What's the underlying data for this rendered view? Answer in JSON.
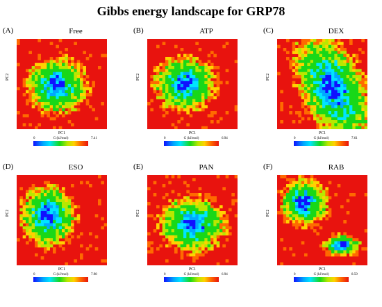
{
  "title": "Gibbs energy landscape for GRP78",
  "colors": {
    "background": "#e8130e",
    "scale": [
      "#1010ff",
      "#00a8ff",
      "#00e5ff",
      "#18d818",
      "#b8e800",
      "#ffd200",
      "#ff6a00",
      "#e8130e"
    ]
  },
  "chart_data": [
    {
      "type": "heatmap",
      "label": "(A)",
      "title": "Free",
      "xlabel": "PC1",
      "ylabel": "PC2",
      "colorbar_label": "G (kJ/mol)",
      "colorbar_min": "0",
      "colorbar_max": "7.41",
      "vmax": 7.41,
      "grid": [
        30,
        30
      ],
      "cx": 0.45,
      "cy": 0.52,
      "sx": 0.22,
      "sy": 0.2
    },
    {
      "type": "heatmap",
      "label": "(B)",
      "title": "ATP",
      "xlabel": "PC1",
      "ylabel": "PC2",
      "colorbar_label": "G (kJ/mol)",
      "colorbar_min": "0",
      "colorbar_max": "6.94",
      "vmax": 6.94,
      "grid": [
        30,
        30
      ],
      "cx": 0.42,
      "cy": 0.5,
      "sx": 0.22,
      "sy": 0.2
    },
    {
      "type": "heatmap",
      "label": "(C)",
      "title": "DEX",
      "xlabel": "PC1",
      "ylabel": "PC2",
      "colorbar_label": "G (kJ/mol)",
      "colorbar_min": "0",
      "colorbar_max": "7.61",
      "vmax": 7.61,
      "grid": [
        30,
        30
      ],
      "cx": 0.62,
      "cy": 0.55,
      "sx": 0.2,
      "sy": 0.28
    },
    {
      "type": "heatmap",
      "label": "(D)",
      "title": "ESO",
      "xlabel": "PC1",
      "ylabel": "PC2",
      "colorbar_label": "G (kJ/mol)",
      "colorbar_min": "0",
      "colorbar_max": "7.98",
      "vmax": 7.98,
      "grid": [
        30,
        30
      ],
      "cx": 0.35,
      "cy": 0.45,
      "sx": 0.2,
      "sy": 0.22
    },
    {
      "type": "heatmap",
      "label": "(E)",
      "title": "PAN",
      "xlabel": "PC1",
      "ylabel": "PC2",
      "colorbar_label": "G (kJ/mol)",
      "colorbar_min": "0",
      "colorbar_max": "6.94",
      "vmax": 6.94,
      "grid": [
        30,
        30
      ],
      "cx": 0.5,
      "cy": 0.55,
      "sx": 0.24,
      "sy": 0.2
    },
    {
      "type": "heatmap",
      "label": "(F)",
      "title": "RAB",
      "xlabel": "PC1",
      "ylabel": "PC2",
      "colorbar_label": "G (kJ/mol)",
      "colorbar_min": "0",
      "colorbar_max": "8.59",
      "vmax": 8.59,
      "grid": [
        30,
        30
      ],
      "cx": 0.3,
      "cy": 0.3,
      "sx": 0.17,
      "sy": 0.17
    }
  ]
}
